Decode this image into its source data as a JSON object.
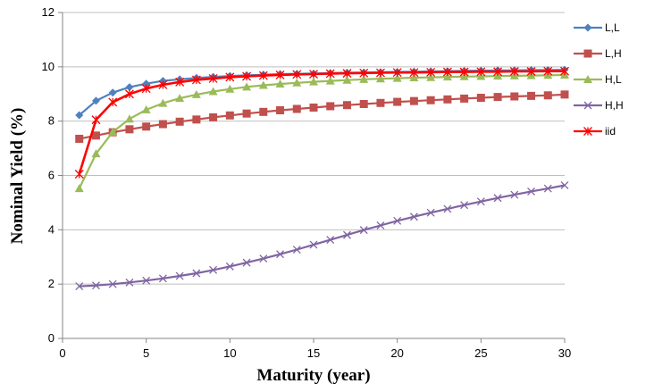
{
  "chart_data": {
    "type": "line",
    "xlabel": "Maturity (year)",
    "ylabel": "Nominal Yield (%)",
    "xlim": [
      0,
      30
    ],
    "ylim": [
      0,
      12
    ],
    "x_ticks": [
      "0",
      "5",
      "10",
      "15",
      "20",
      "25",
      "30"
    ],
    "y_ticks": [
      "0",
      "2",
      "4",
      "6",
      "8",
      "10",
      "12"
    ],
    "grid": "horizontal",
    "legend_position": "right",
    "x": [
      1,
      2,
      3,
      4,
      5,
      6,
      7,
      8,
      9,
      10,
      11,
      12,
      13,
      14,
      15,
      16,
      17,
      18,
      19,
      20,
      21,
      22,
      23,
      24,
      25,
      26,
      27,
      28,
      29,
      30
    ],
    "series": [
      {
        "name": "L,L",
        "color": "#4F81BD",
        "marker": "diamond",
        "values": [
          8.22,
          8.75,
          9.05,
          9.25,
          9.38,
          9.48,
          9.54,
          9.59,
          9.63,
          9.66,
          9.69,
          9.71,
          9.73,
          9.74,
          9.75,
          9.77,
          9.78,
          9.79,
          9.8,
          9.81,
          9.82,
          9.83,
          9.84,
          9.85,
          9.86,
          9.87,
          9.87,
          9.88,
          9.88,
          9.89
        ]
      },
      {
        "name": "L,H",
        "color": "#C0504D",
        "marker": "square",
        "values": [
          7.35,
          7.47,
          7.59,
          7.7,
          7.8,
          7.89,
          7.98,
          8.06,
          8.14,
          8.21,
          8.28,
          8.34,
          8.4,
          8.45,
          8.5,
          8.55,
          8.59,
          8.63,
          8.67,
          8.71,
          8.74,
          8.77,
          8.8,
          8.83,
          8.86,
          8.89,
          8.91,
          8.93,
          8.95,
          8.98
        ]
      },
      {
        "name": "H,L",
        "color": "#9BBB59",
        "marker": "triangle",
        "values": [
          5.52,
          6.8,
          7.6,
          8.08,
          8.42,
          8.66,
          8.84,
          8.98,
          9.09,
          9.18,
          9.26,
          9.32,
          9.37,
          9.41,
          9.45,
          9.48,
          9.51,
          9.54,
          9.56,
          9.58,
          9.6,
          9.61,
          9.63,
          9.64,
          9.65,
          9.66,
          9.67,
          9.68,
          9.69,
          9.7
        ]
      },
      {
        "name": "H,H",
        "color": "#8064A2",
        "marker": "x",
        "values": [
          1.92,
          1.95,
          2.0,
          2.06,
          2.13,
          2.21,
          2.3,
          2.4,
          2.52,
          2.65,
          2.79,
          2.94,
          3.1,
          3.27,
          3.45,
          3.63,
          3.81,
          3.99,
          4.16,
          4.33,
          4.48,
          4.63,
          4.77,
          4.91,
          5.04,
          5.17,
          5.29,
          5.41,
          5.52,
          5.64
        ]
      },
      {
        "name": "iid",
        "color": "#FF0000",
        "marker": "star",
        "values": [
          6.05,
          8.05,
          8.7,
          9.0,
          9.2,
          9.34,
          9.44,
          9.52,
          9.57,
          9.62,
          9.65,
          9.68,
          9.7,
          9.72,
          9.73,
          9.75,
          9.76,
          9.77,
          9.78,
          9.79,
          9.79,
          9.8,
          9.81,
          9.81,
          9.82,
          9.82,
          9.83,
          9.83,
          9.84,
          9.84
        ]
      }
    ]
  }
}
